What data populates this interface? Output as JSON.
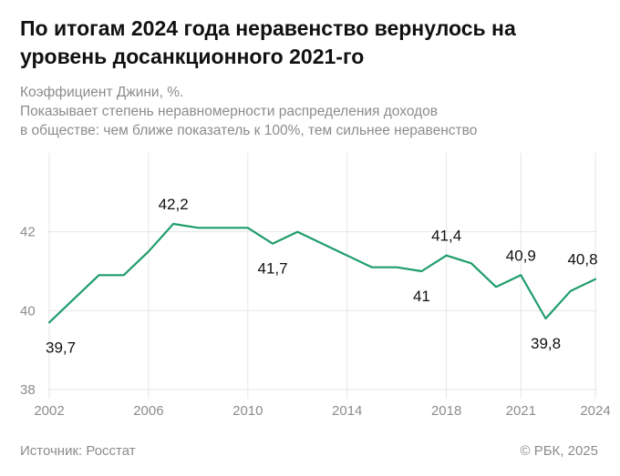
{
  "title": "По итогам 2024 года неравенство вернулось на уровень досанкционного 2021-го",
  "subtitle_lines": [
    "Коэффициент Джини, %.",
    "Показывает степень неравномерности распределения доходов",
    "в обществе: чем ближе показатель к 100%, тем сильнее неравенство"
  ],
  "source": "Источник: Росстат",
  "copyright": "© РБК, 2025",
  "colors": {
    "line": "#1f9d6b",
    "grid": "#e6e6e6",
    "axis_text": "#8c8c8c"
  },
  "chart_data": {
    "type": "line",
    "x": [
      2002,
      2003,
      2004,
      2005,
      2006,
      2007,
      2008,
      2009,
      2010,
      2011,
      2012,
      2013,
      2014,
      2015,
      2016,
      2017,
      2018,
      2019,
      2020,
      2021,
      2022,
      2023,
      2024
    ],
    "series": [
      {
        "values": [
          39.7,
          40.3,
          40.9,
          40.9,
          41.5,
          42.2,
          42.1,
          42.1,
          42.1,
          41.7,
          42.0,
          41.7,
          41.4,
          41.1,
          41.1,
          41.0,
          41.4,
          41.2,
          40.6,
          40.9,
          39.8,
          40.5,
          40.8
        ]
      }
    ],
    "ylim": [
      38,
      44
    ],
    "yticks": [
      38,
      40,
      42
    ],
    "ytick_labels": [
      "38",
      "40",
      "42"
    ],
    "xticks": [
      2002,
      2006,
      2010,
      2014,
      2018,
      2021,
      2024
    ],
    "xtick_labels": [
      "2002",
      "2006",
      "2010",
      "2014",
      "2018",
      "2021",
      "2024"
    ],
    "grid": true,
    "annotations": [
      {
        "x": 2002,
        "text": "39,7",
        "position": "below"
      },
      {
        "x": 2007,
        "text": "42,2",
        "position": "above"
      },
      {
        "x": 2011,
        "text": "41,7",
        "position": "below"
      },
      {
        "x": 2017,
        "text": "41",
        "position": "below"
      },
      {
        "x": 2018,
        "text": "41,4",
        "position": "above"
      },
      {
        "x": 2021,
        "text": "40,9",
        "position": "above"
      },
      {
        "x": 2022,
        "text": "39,8",
        "position": "below"
      },
      {
        "x": 2024,
        "text": "40,8",
        "position": "above"
      }
    ]
  }
}
